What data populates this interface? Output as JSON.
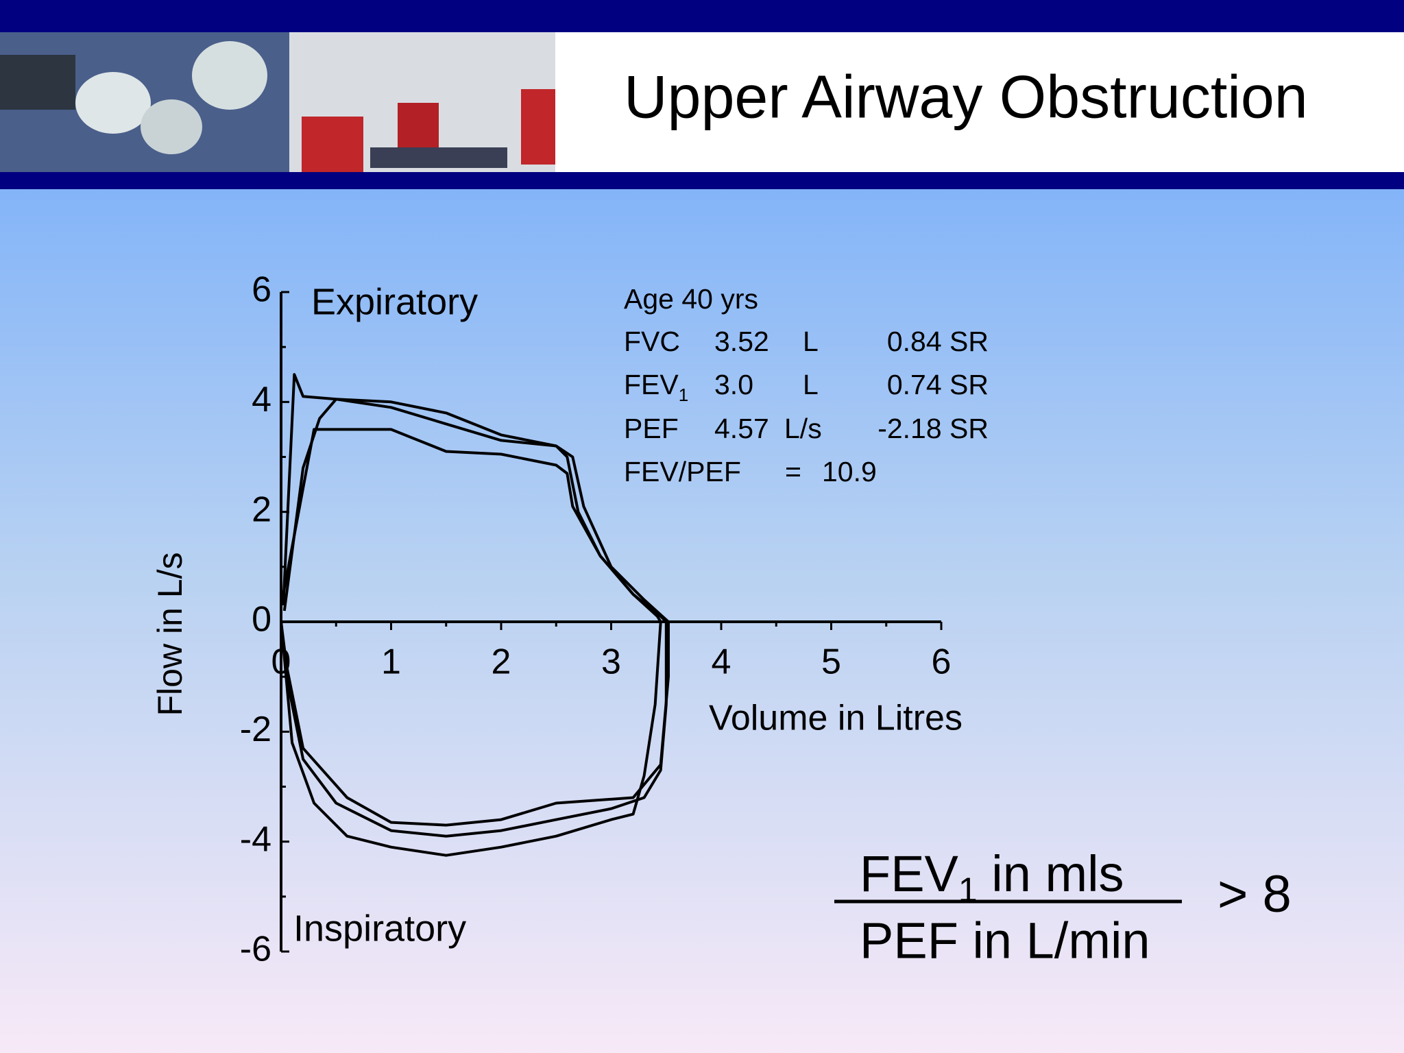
{
  "title": "Upper Airway Obstruction",
  "chart_data": {
    "type": "line",
    "xlabel": "Volume in Litres",
    "ylabel": "Flow in L/s",
    "annotations": [
      "Expiratory",
      "Inspiratory"
    ],
    "xlim": [
      0,
      6
    ],
    "ylim": [
      -6,
      6
    ],
    "xticks": [
      0,
      1,
      2,
      3,
      4,
      5,
      6
    ],
    "yticks": [
      -6,
      -4,
      -2,
      0,
      2,
      4,
      6
    ],
    "series": [
      {
        "color": "#000000",
        "x": [
          0.02,
          0.12,
          0.2,
          0.5,
          1.0,
          1.5,
          2.0,
          2.5,
          2.6,
          2.7,
          2.9,
          3.2,
          3.45,
          3.5,
          3.5,
          3.45,
          3.3,
          3.0,
          2.5,
          2.0,
          1.5,
          1.0,
          0.5,
          0.2,
          0.05,
          0.0
        ],
        "values": [
          0.3,
          4.5,
          4.1,
          4.05,
          4.0,
          3.8,
          3.4,
          3.2,
          3.0,
          2.0,
          1.2,
          0.5,
          0.1,
          0.0,
          -1.5,
          -2.7,
          -3.2,
          -3.4,
          -3.6,
          -3.8,
          -3.9,
          -3.8,
          -3.3,
          -2.5,
          -1.0,
          0.0
        ]
      },
      {
        "color": "#000000",
        "x": [
          0.03,
          0.2,
          0.35,
          0.5,
          1.0,
          1.5,
          2.0,
          2.5,
          2.65,
          2.75,
          3.0,
          3.3,
          3.52,
          3.52,
          3.45,
          3.2,
          2.5,
          2.0,
          1.5,
          1.0,
          0.6,
          0.2,
          0.05,
          0.0
        ],
        "values": [
          0.2,
          2.8,
          3.7,
          4.05,
          3.9,
          3.6,
          3.3,
          3.2,
          3.0,
          2.1,
          1.0,
          0.4,
          0.0,
          -1.0,
          -2.6,
          -3.2,
          -3.3,
          -3.6,
          -3.7,
          -3.65,
          -3.2,
          -2.3,
          -0.8,
          0.0
        ]
      },
      {
        "color": "#000000",
        "x": [
          0.02,
          0.3,
          0.5,
          1.0,
          1.5,
          2.0,
          2.5,
          2.6,
          2.65,
          2.9,
          3.2,
          3.42,
          3.45,
          3.4,
          3.3,
          3.2,
          3.0,
          2.5,
          2.0,
          1.5,
          1.0,
          0.6,
          0.3,
          0.1,
          0.0
        ],
        "values": [
          0.5,
          3.5,
          3.5,
          3.5,
          3.1,
          3.05,
          2.85,
          2.7,
          2.1,
          1.2,
          0.5,
          0.1,
          0.0,
          -1.5,
          -2.8,
          -3.5,
          -3.6,
          -3.9,
          -4.1,
          -4.25,
          -4.1,
          -3.9,
          -3.3,
          -2.2,
          0.0
        ]
      }
    ]
  },
  "stats": {
    "age": "Age 40 yrs",
    "rows": [
      {
        "label": "FVC",
        "value": "3.52",
        "unit": "L",
        "sr": "0.84 SR"
      },
      {
        "label": "FEV",
        "sub": "1",
        "value": "3.0",
        "unit": "L",
        "sr": "0.74 SR"
      },
      {
        "label": "PEF",
        "value": "4.57",
        "unit": "L/s",
        "sr": "-2.18 SR"
      }
    ],
    "ratio": {
      "label": "FEV/PEF",
      "equals": "=",
      "value": "10.9"
    }
  },
  "formula": {
    "numerator": "FEV",
    "numerator_sub": "1",
    "numerator_rest": " in mls",
    "denominator": "PEF in L/min",
    "relation": "> 8"
  }
}
